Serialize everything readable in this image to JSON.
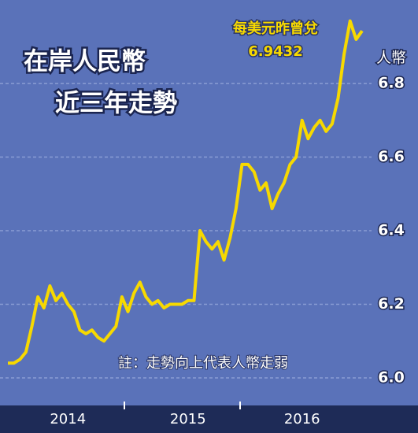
{
  "chart_data": {
    "type": "line",
    "title_lines": [
      "在岸人民幣",
      "近三年走勢"
    ],
    "y_axis_label": "人幣",
    "annotation": {
      "text": "每美元昨曾兌",
      "value": 6.9432
    },
    "note": "註：走勢向上代表人幣走弱",
    "categories": [
      null,
      null,
      null,
      null,
      null,
      null,
      null,
      null,
      null,
      null,
      "2014",
      null,
      null,
      null,
      null,
      null,
      null,
      null,
      null,
      null,
      null,
      null,
      null,
      null,
      null,
      null,
      null,
      null,
      null,
      null,
      "2015",
      null,
      null,
      null,
      null,
      null,
      null,
      null,
      null,
      null,
      null,
      null,
      null,
      null,
      null,
      null,
      null,
      null,
      null,
      "2016",
      null,
      null,
      null,
      null,
      null,
      null,
      null,
      null,
      null,
      null
    ],
    "values": [
      6.04,
      6.04,
      6.05,
      6.07,
      6.14,
      6.22,
      6.19,
      6.25,
      6.21,
      6.23,
      6.2,
      6.18,
      6.13,
      6.12,
      6.13,
      6.11,
      6.1,
      6.12,
      6.14,
      6.22,
      6.18,
      6.23,
      6.26,
      6.22,
      6.2,
      6.21,
      6.19,
      6.2,
      6.2,
      6.2,
      6.21,
      6.21,
      6.4,
      6.37,
      6.35,
      6.37,
      6.32,
      6.38,
      6.46,
      6.58,
      6.58,
      6.56,
      6.51,
      6.53,
      6.46,
      6.5,
      6.53,
      6.58,
      6.6,
      6.7,
      6.65,
      6.68,
      6.7,
      6.67,
      6.69,
      6.76,
      6.88,
      6.97,
      6.92,
      6.9432
    ],
    "color": "#f7d900",
    "ylim": [
      5.925,
      7.027
    ],
    "yticks": [
      {
        "value": 6,
        "label": "6.0"
      },
      6.2,
      6.4,
      6.6,
      6.8
    ],
    "grid": true
  }
}
